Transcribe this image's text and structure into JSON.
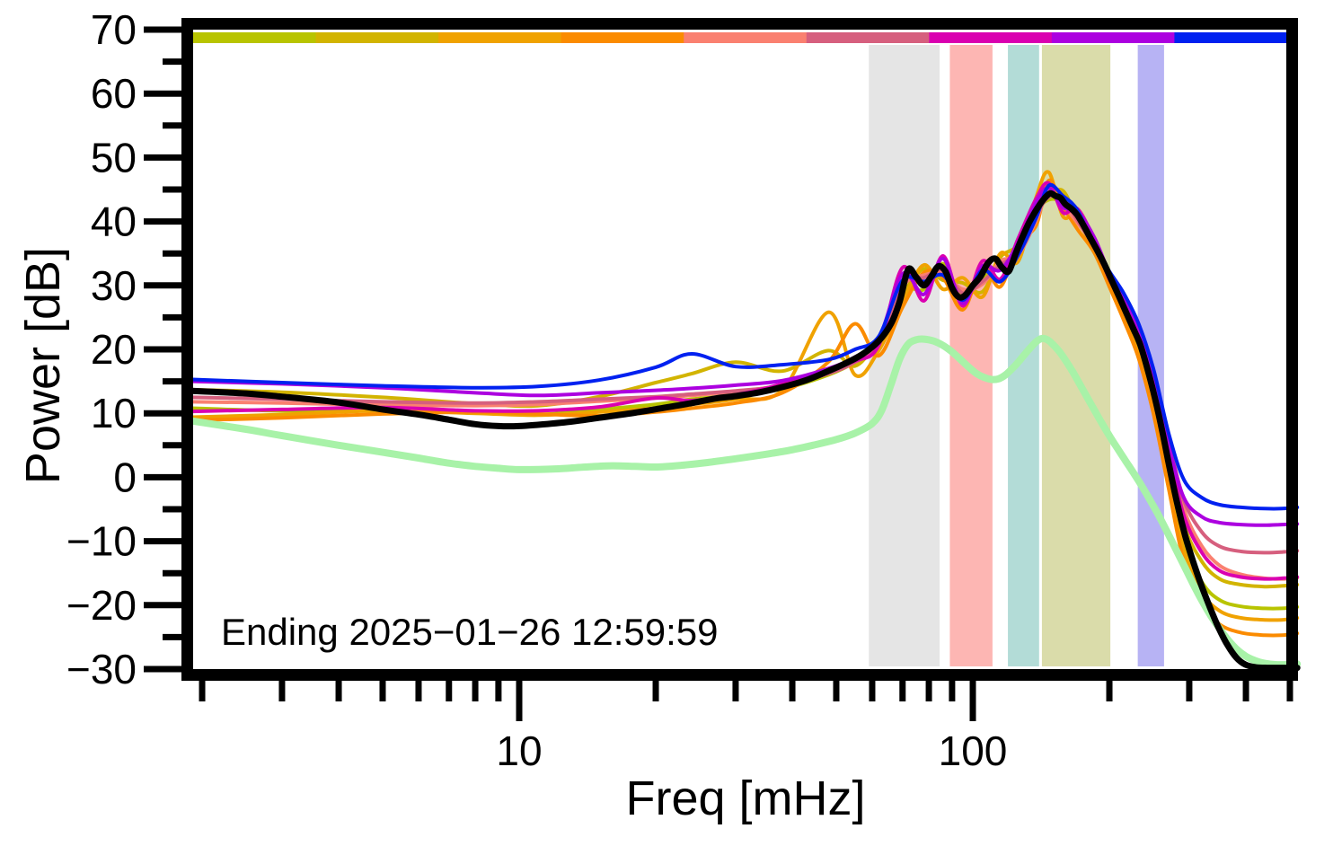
{
  "figure": {
    "annotation": "Ending 2025−01−26 12:59:59",
    "xlabel": "Freq [mHz]",
    "ylabel": "Power [dB]"
  },
  "chart_data": {
    "type": "line",
    "title": "",
    "xlabel": "Freq [mHz]",
    "ylabel": "Power [dB]",
    "x_scale": "log",
    "xlim": [
      1.9,
      519
    ],
    "ylim": [
      -30,
      70
    ],
    "grid": false,
    "legend": "none (time mapped to top color strip)",
    "annotation": "Ending 2025−01−26 12:59:59",
    "x_major_ticks": [
      10,
      100
    ],
    "x_minor_ticks": [
      2,
      3,
      4,
      5,
      6,
      7,
      8,
      9,
      20,
      30,
      40,
      50,
      60,
      70,
      80,
      90,
      200,
      300,
      400,
      500
    ],
    "y_major_ticks": [
      70,
      60,
      50,
      40,
      30,
      20,
      10,
      0,
      -10,
      -20,
      -30
    ],
    "y_minor_ticks": [
      65,
      55,
      45,
      35,
      25,
      15,
      5,
      -5,
      -15,
      -25
    ],
    "time_colorbar_segments": [
      "#b8c400",
      "#d2b400",
      "#f0a200",
      "#fb8b00",
      "#fa8070",
      "#d65f7e",
      "#da00b0",
      "#ac00e0",
      "#0021f0"
    ],
    "shaded_bands": [
      {
        "id": "band-gray",
        "color": "#e5e5e5",
        "f_min": 59,
        "f_max": 84.5
      },
      {
        "id": "band-pink",
        "color": "#fdb6b3",
        "f_min": 89,
        "f_max": 110.5
      },
      {
        "id": "band-teal",
        "color": "#b3dcd7",
        "f_min": 119.5,
        "f_max": 140
      },
      {
        "id": "band-khaki",
        "color": "#dadcaa",
        "f_min": 142,
        "f_max": 201
      },
      {
        "id": "band-lavender",
        "color": "#b7b3f4",
        "f_min": 231,
        "f_max": 264
      }
    ],
    "colored_x": [
      1.9,
      3,
      5,
      8,
      11,
      15,
      20,
      24,
      30,
      38,
      48,
      55,
      62,
      70,
      78,
      86,
      95,
      105,
      115,
      126,
      138,
      147,
      158,
      170,
      185,
      200,
      215,
      232,
      250,
      270,
      292,
      320,
      350,
      390,
      440,
      480,
      519
    ],
    "colored_series": [
      {
        "id": "spectrum-yellowgreen",
        "color": "#b8c400",
        "width": 4,
        "values": [
          10.8,
          10.4,
          10.6,
          10.2,
          9.8,
          10.6,
          11.4,
          12.2,
          12.8,
          13.8,
          16.0,
          18.0,
          20.4,
          29.0,
          29.4,
          33.4,
          28.0,
          31.0,
          33.4,
          35.4,
          41.4,
          43.4,
          43.0,
          40.6,
          35.8,
          30.4,
          25.4,
          19.8,
          12.0,
          1.2,
          -10.0,
          -16.4,
          -19.2,
          -20.2,
          -20.5,
          -20.5,
          -20.3
        ]
      },
      {
        "id": "spectrum-gold",
        "color": "#d2b400",
        "width": 4,
        "values": [
          13.7,
          13.3,
          12.5,
          11.5,
          11.2,
          12.6,
          14.8,
          16.2,
          18.0,
          16.6,
          19.8,
          17.4,
          21.8,
          28.6,
          32.6,
          30.8,
          30.4,
          29.0,
          34.4,
          36.4,
          42.4,
          44.0,
          44.8,
          40.4,
          35.6,
          30.6,
          26.2,
          21.0,
          13.8,
          3.4,
          -7.4,
          -13.2,
          -15.9,
          -16.8,
          -17.1,
          -17.0,
          -16.8
        ]
      },
      {
        "id": "spectrum-orange",
        "color": "#f0a200",
        "width": 4,
        "values": [
          9.4,
          9.8,
          10.4,
          10.0,
          9.7,
          10.2,
          10.8,
          11.4,
          12.2,
          13.6,
          25.8,
          16.0,
          19.8,
          27.4,
          33.2,
          29.4,
          31.2,
          28.2,
          35.0,
          33.8,
          43.8,
          47.7,
          40.8,
          41.2,
          36.6,
          30.2,
          25.8,
          19.4,
          11.2,
          0.2,
          -11.4,
          -18.0,
          -20.9,
          -22.0,
          -22.3,
          -22.3,
          -22.0
        ]
      },
      {
        "id": "spectrum-darkorange",
        "color": "#fb8b00",
        "width": 4,
        "values": [
          8.9,
          9.3,
          9.9,
          10.2,
          9.9,
          9.6,
          10.2,
          10.8,
          11.6,
          13.2,
          18.0,
          24.0,
          19.0,
          26.6,
          32.0,
          31.2,
          26.2,
          32.8,
          29.8,
          36.6,
          39.4,
          46.4,
          42.4,
          38.8,
          35.2,
          29.8,
          24.6,
          18.6,
          10.0,
          -1.6,
          -13.2,
          -19.8,
          -23.0,
          -24.3,
          -24.7,
          -24.7,
          -24.4
        ]
      },
      {
        "id": "spectrum-salmon",
        "color": "#fa8070",
        "width": 4,
        "values": [
          11.8,
          11.6,
          11.3,
          11.2,
          11.4,
          11.9,
          12.4,
          12.8,
          13.4,
          14.4,
          16.4,
          18.4,
          21.0,
          29.8,
          31.6,
          31.8,
          29.4,
          30.2,
          33.8,
          34.8,
          40.2,
          44.6,
          42.6,
          39.8,
          36.4,
          31.8,
          27.0,
          22.0,
          14.8,
          5.0,
          -5.0,
          -10.8,
          -13.8,
          -15.2,
          -15.8,
          -15.9,
          -15.7
        ]
      },
      {
        "id": "spectrum-rose",
        "color": "#d65f7e",
        "width": 4,
        "values": [
          12.5,
          12.2,
          11.8,
          11.6,
          11.8,
          12.2,
          12.6,
          13.0,
          13.5,
          14.3,
          16.2,
          18.0,
          20.8,
          30.4,
          31.2,
          32.4,
          28.8,
          30.6,
          33.2,
          35.2,
          41.0,
          43.8,
          43.6,
          40.2,
          36.0,
          31.2,
          26.6,
          22.2,
          15.4,
          5.8,
          -3.6,
          -8.6,
          -10.8,
          -11.6,
          -11.8,
          -11.7,
          -11.5
        ]
      },
      {
        "id": "spectrum-magenta",
        "color": "#da00b0",
        "width": 4,
        "values": [
          10.3,
          10.6,
          10.9,
          10.4,
          10.4,
          11.0,
          12.4,
          12.0,
          12.9,
          14.6,
          17.0,
          18.2,
          20.6,
          32.8,
          27.6,
          34.6,
          26.8,
          33.8,
          31.0,
          37.4,
          43.6,
          46.0,
          41.4,
          42.0,
          37.2,
          31.0,
          27.6,
          22.6,
          14.6,
          4.2,
          -6.0,
          -11.8,
          -14.6,
          -15.6,
          -15.9,
          -15.8,
          -15.6
        ]
      },
      {
        "id": "spectrum-purple",
        "color": "#ac00e0",
        "width": 4,
        "values": [
          15.0,
          14.6,
          14.0,
          13.2,
          12.8,
          13.2,
          13.6,
          13.9,
          14.4,
          15.1,
          17.0,
          18.8,
          21.6,
          31.8,
          28.6,
          34.2,
          27.2,
          33.0,
          32.4,
          36.8,
          43.0,
          45.2,
          42.2,
          41.6,
          37.6,
          32.0,
          28.2,
          23.2,
          15.8,
          5.2,
          -3.2,
          -6.2,
          -7.1,
          -7.4,
          -7.5,
          -7.4,
          -7.3
        ]
      },
      {
        "id": "spectrum-blue",
        "color": "#0021f0",
        "width": 4,
        "values": [
          15.3,
          14.8,
          14.3,
          14.0,
          14.2,
          15.2,
          17.2,
          19.3,
          17.3,
          17.6,
          18.4,
          20.0,
          22.0,
          30.8,
          30.6,
          31.6,
          27.7,
          32.4,
          30.6,
          34.8,
          40.6,
          45.6,
          44.0,
          41.8,
          36.2,
          32.2,
          28.8,
          24.0,
          17.0,
          7.0,
          -0.4,
          -3.2,
          -4.3,
          -4.7,
          -4.9,
          -4.9,
          -4.7
        ]
      }
    ],
    "reference_series": {
      "id": "smooth-reference-green",
      "color": "#a8f2a8",
      "width": 8,
      "x": [
        1.9,
        2.5,
        3,
        4,
        5,
        6,
        7,
        8,
        9,
        10,
        12,
        14,
        16,
        18,
        20,
        23,
        26,
        30,
        35,
        40,
        45,
        50,
        55,
        60,
        63,
        66,
        69,
        72,
        75,
        78,
        82,
        86,
        90,
        94,
        98,
        102,
        106,
        110,
        114,
        118,
        123,
        128,
        133,
        138,
        142,
        146,
        150,
        155,
        160,
        166,
        172,
        178,
        185,
        192,
        200,
        208,
        217,
        226,
        236,
        246,
        257,
        268,
        280,
        293,
        306,
        320,
        335,
        350,
        366,
        383,
        400,
        420,
        440,
        465,
        490,
        519
      ],
      "values": [
        8.8,
        7.5,
        6.5,
        5.0,
        3.9,
        3.0,
        2.2,
        1.7,
        1.4,
        1.2,
        1.3,
        1.6,
        1.8,
        1.7,
        1.6,
        1.9,
        2.3,
        2.9,
        3.6,
        4.3,
        5.1,
        5.9,
        6.9,
        8.4,
        10.5,
        14.5,
        18.5,
        20.8,
        21.5,
        21.6,
        21.3,
        20.6,
        19.6,
        18.4,
        17.2,
        16.2,
        15.6,
        15.3,
        15.4,
        16.0,
        17.2,
        18.6,
        20.0,
        21.2,
        21.7,
        21.5,
        20.8,
        19.7,
        18.3,
        16.5,
        14.6,
        12.7,
        10.6,
        8.6,
        6.5,
        4.6,
        2.6,
        0.7,
        -1.4,
        -3.6,
        -6.0,
        -8.5,
        -11.2,
        -14.0,
        -16.7,
        -19.3,
        -21.7,
        -23.7,
        -25.5,
        -27.0,
        -28.0,
        -28.7,
        -29.1,
        -29.3,
        -29.3,
        -29.2
      ]
    },
    "total_series": {
      "id": "current-spectrum-black",
      "color": "#000000",
      "width": 7,
      "x": [
        1.9,
        2.5,
        3,
        4,
        5,
        6,
        7,
        8,
        9,
        10,
        11,
        13,
        15,
        18,
        21,
        24,
        27,
        30,
        34,
        38,
        43,
        48,
        52,
        57,
        62,
        66,
        69,
        72,
        75,
        78,
        81,
        84,
        87,
        90,
        93,
        96,
        100,
        104,
        108,
        112,
        116,
        120,
        124,
        128,
        133,
        138,
        143,
        148,
        152,
        156,
        160,
        165,
        170,
        176,
        182,
        188,
        195,
        202,
        210,
        218,
        226,
        234,
        243,
        252,
        262,
        272,
        283,
        294,
        306,
        319,
        333,
        348,
        364,
        381,
        399,
        420,
        445,
        470,
        500,
        519
      ],
      "values": [
        13.5,
        13.1,
        12.6,
        11.7,
        10.6,
        9.8,
        9.0,
        8.3,
        8.0,
        8.0,
        8.2,
        8.7,
        9.3,
        10.1,
        10.9,
        11.6,
        12.3,
        12.7,
        13.3,
        14.1,
        15.2,
        16.6,
        17.7,
        19.2,
        21.3,
        24.0,
        27.5,
        32.5,
        31.3,
        30.0,
        31.4,
        33.0,
        32.2,
        29.6,
        28.2,
        28.4,
        30.0,
        31.4,
        33.5,
        34.2,
        32.8,
        32.2,
        34.8,
        37.2,
        39.8,
        41.8,
        43.4,
        44.4,
        44.0,
        43.7,
        42.7,
        42.0,
        41.0,
        39.2,
        37.3,
        35.5,
        33.3,
        30.9,
        28.3,
        25.7,
        23.2,
        20.7,
        16.8,
        12.4,
        7.0,
        1.2,
        -4.5,
        -9.2,
        -13.2,
        -16.9,
        -20.3,
        -23.5,
        -26.2,
        -28.2,
        -29.3,
        -29.7,
        -29.8,
        -29.8,
        -29.8,
        -29.8
      ]
    }
  }
}
